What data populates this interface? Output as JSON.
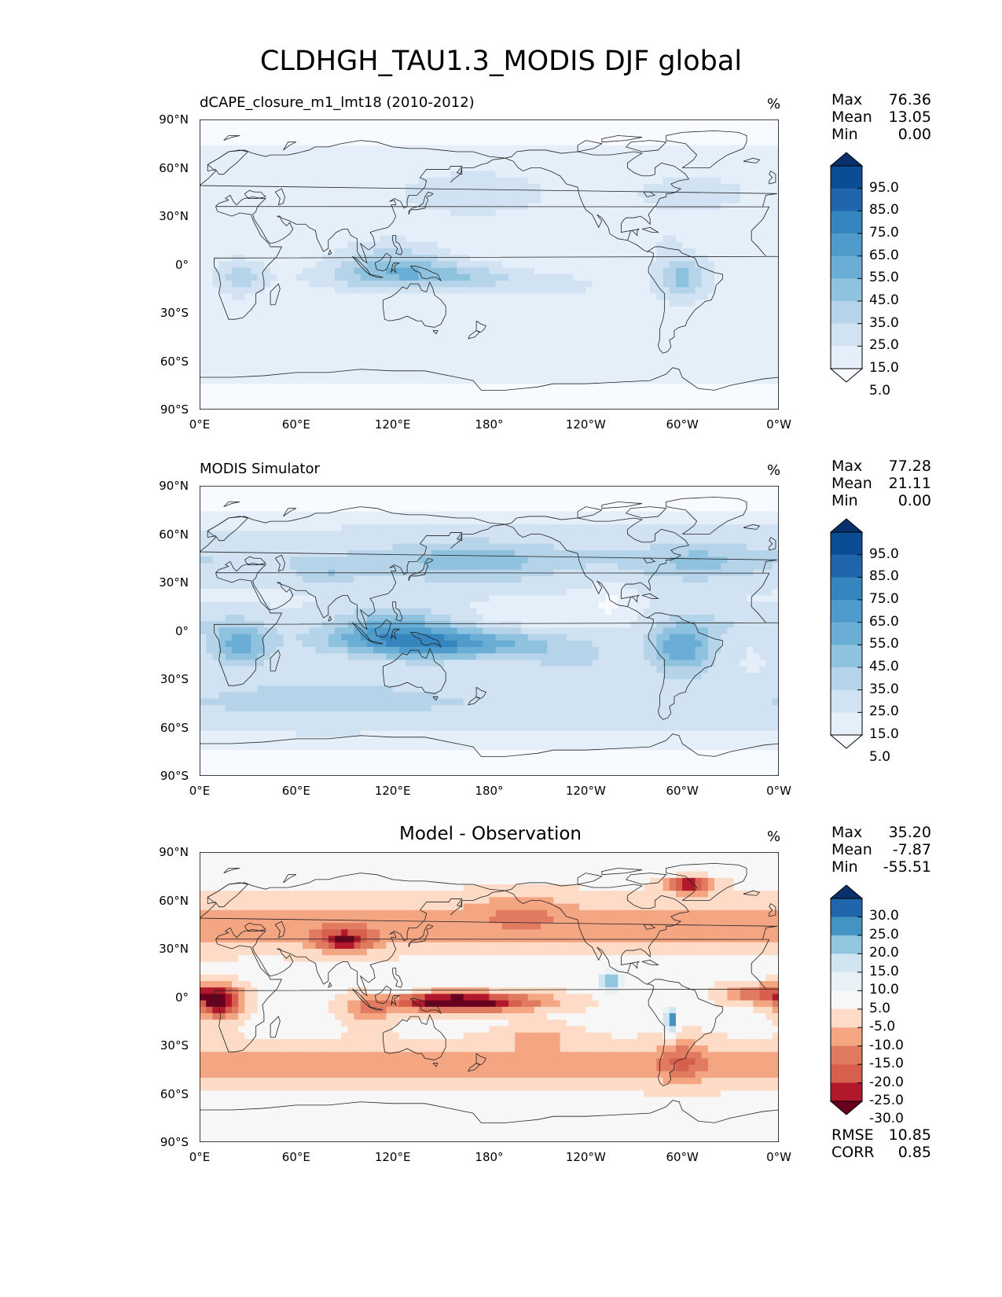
{
  "figure_title": "CLDHGH_TAU1.3_MODIS DJF global",
  "panels": [
    {
      "title": "dCAPE_closure_m1_lmt18 (2010-2012)",
      "title_style": "left",
      "units": "%",
      "stats": {
        "max_label": "Max",
        "max": "76.36",
        "mean_label": "Mean",
        "mean": "13.05",
        "min_label": "Min",
        "min": "0.00"
      },
      "colorbar": {
        "labels": [
          "95.0",
          "85.0",
          "75.0",
          "65.0",
          "55.0",
          "45.0",
          "35.0",
          "25.0",
          "15.0",
          "5.0"
        ],
        "colors": [
          "#08306b",
          "#0b4d94",
          "#1f66ad",
          "#3585bf",
          "#4f9bcb",
          "#6aaed6",
          "#8fc2de",
          "#b5d4e9",
          "#d1e2f2",
          "#e5eff9",
          "#f7fbff"
        ]
      }
    },
    {
      "title": "MODIS Simulator",
      "title_style": "left",
      "units": "%",
      "stats": {
        "max_label": "Max",
        "max": "77.28",
        "mean_label": "Mean",
        "mean": "21.11",
        "min_label": "Min",
        "min": "0.00"
      },
      "colorbar": {
        "labels": [
          "95.0",
          "85.0",
          "75.0",
          "65.0",
          "55.0",
          "45.0",
          "35.0",
          "25.0",
          "15.0",
          "5.0"
        ],
        "colors": [
          "#08306b",
          "#0b4d94",
          "#1f66ad",
          "#3585bf",
          "#4f9bcb",
          "#6aaed6",
          "#8fc2de",
          "#b5d4e9",
          "#d1e2f2",
          "#e5eff9",
          "#f7fbff"
        ]
      }
    },
    {
      "title": "Model - Observation",
      "title_style": "center",
      "units": "%",
      "stats": {
        "max_label": "Max",
        "max": "35.20",
        "mean_label": "Mean",
        "mean": "-7.87",
        "min_label": "Min",
        "min": "-55.51"
      },
      "colorbar": {
        "labels": [
          "30.0",
          "25.0",
          "20.0",
          "15.0",
          "10.0",
          "5.0",
          "-5.0",
          "-10.0",
          "-15.0",
          "-20.0",
          "-25.0",
          "-30.0"
        ],
        "colors": [
          "#08306b",
          "#2166ac",
          "#4393c3",
          "#92c5de",
          "#d1e5f0",
          "#e8f1f5",
          "#f7f7f7",
          "#fddbc7",
          "#f4a582",
          "#e07b61",
          "#d6604d",
          "#b2182b",
          "#67001f"
        ]
      },
      "metrics": {
        "rmse_label": "RMSE",
        "rmse": "10.85",
        "corr_label": "CORR",
        "corr": "0.85"
      }
    }
  ],
  "axes": {
    "x_ticks": [
      "0°E",
      "60°E",
      "120°E",
      "180°",
      "120°W",
      "60°W",
      "0°W"
    ],
    "y_ticks": [
      "90°N",
      "60°N",
      "30°N",
      "0°",
      "30°S",
      "60°S",
      "90°S"
    ]
  },
  "chart_data": [
    {
      "type": "heatmap",
      "title": "dCAPE_closure_m1_lmt18 (2010-2012)",
      "variable": "CLDHGH_TAU1.3_MODIS",
      "units": "%",
      "xlim": [
        0,
        360
      ],
      "ylim": [
        -90,
        90
      ],
      "levels": [
        5,
        15,
        25,
        35,
        45,
        55,
        65,
        75,
        85,
        95
      ],
      "max": 76.36,
      "mean": 13.05,
      "min": 0.0,
      "colormap": "Blues"
    },
    {
      "type": "heatmap",
      "title": "MODIS Simulator",
      "units": "%",
      "xlim": [
        0,
        360
      ],
      "ylim": [
        -90,
        90
      ],
      "levels": [
        5,
        15,
        25,
        35,
        45,
        55,
        65,
        75,
        85,
        95
      ],
      "max": 77.28,
      "mean": 21.11,
      "min": 0.0,
      "colormap": "Blues"
    },
    {
      "type": "heatmap",
      "title": "Model - Observation",
      "units": "%",
      "xlim": [
        0,
        360
      ],
      "ylim": [
        -90,
        90
      ],
      "levels": [
        -30,
        -25,
        -20,
        -15,
        -10,
        -5,
        5,
        10,
        15,
        20,
        25,
        30
      ],
      "max": 35.2,
      "mean": -7.87,
      "min": -55.51,
      "rmse": 10.85,
      "corr": 0.85,
      "colormap": "RdBu_r"
    }
  ]
}
